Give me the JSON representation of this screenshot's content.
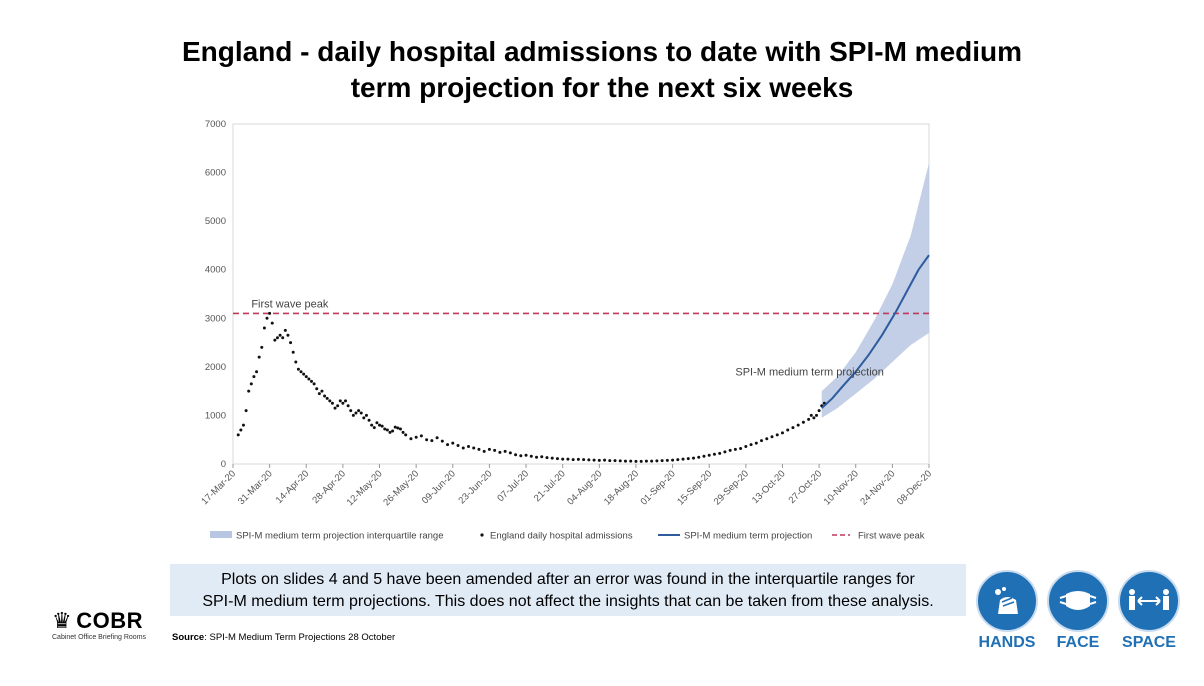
{
  "title_line1": "England - daily hospital admissions to date with SPI-M medium",
  "title_line2": "term projection for the next six weeks",
  "note_line1": "Plots on slides 4 and 5 have been amended after an error was found in the interquartile ranges for",
  "note_line2": "SPI-M medium term projections. This does not affect the insights that can be taken from these analysis.",
  "logo": {
    "word": "COBR",
    "subtitle": "Cabinet Office Briefing Rooms"
  },
  "source": {
    "label": "Source",
    "text": ": SPI-M Medium Term Projections 28 October"
  },
  "badges": [
    {
      "label": "HANDS",
      "icon": "hands-icon"
    },
    {
      "label": "FACE",
      "icon": "face-mask-icon"
    },
    {
      "label": "SPACE",
      "icon": "distance-icon"
    }
  ],
  "colors": {
    "admissions": "#111111",
    "projection": "#2e5c9e",
    "band": "#b8c6e3",
    "peak": "#c0395a",
    "badge": "#1f70b5",
    "note_bg": "#e1ebf6"
  },
  "chart_data": {
    "type": "scatter",
    "x_range": [
      "2020-03-17",
      "2020-12-08"
    ],
    "ylim": [
      0,
      7000
    ],
    "yticks": [
      0,
      1000,
      2000,
      3000,
      4000,
      5000,
      6000,
      7000
    ],
    "xtick_labels": [
      "17-Mar-20",
      "31-Mar-20",
      "14-Apr-20",
      "28-Apr-20",
      "12-May-20",
      "26-May-20",
      "09-Jun-20",
      "23-Jun-20",
      "07-Jul-20",
      "21-Jul-20",
      "04-Aug-20",
      "18-Aug-20",
      "01-Sep-20",
      "15-Sep-20",
      "29-Sep-20",
      "13-Oct-20",
      "27-Oct-20",
      "10-Nov-20",
      "24-Nov-20",
      "08-Dec-20"
    ],
    "grid": false,
    "legend_position": "bottom",
    "annotations": [
      {
        "text": "First wave peak",
        "x": "2020-03-24",
        "y": 3300
      },
      {
        "text": "SPI-M medium term projection",
        "x": "2020-09-25",
        "y": 1900
      }
    ],
    "peak_line": {
      "name": "First wave peak",
      "y": 3100
    },
    "series": [
      {
        "name": "England daily hospital admissions",
        "kind": "scatter",
        "points": [
          [
            "2020-03-19",
            600
          ],
          [
            "2020-03-20",
            700
          ],
          [
            "2020-03-21",
            800
          ],
          [
            "2020-03-22",
            1100
          ],
          [
            "2020-03-23",
            1500
          ],
          [
            "2020-03-24",
            1650
          ],
          [
            "2020-03-25",
            1800
          ],
          [
            "2020-03-26",
            1900
          ],
          [
            "2020-03-27",
            2200
          ],
          [
            "2020-03-28",
            2400
          ],
          [
            "2020-03-29",
            2800
          ],
          [
            "2020-03-30",
            3000
          ],
          [
            "2020-03-31",
            3100
          ],
          [
            "2020-04-01",
            2900
          ],
          [
            "2020-04-02",
            2550
          ],
          [
            "2020-04-03",
            2600
          ],
          [
            "2020-04-04",
            2650
          ],
          [
            "2020-04-05",
            2600
          ],
          [
            "2020-04-06",
            2750
          ],
          [
            "2020-04-07",
            2650
          ],
          [
            "2020-04-08",
            2500
          ],
          [
            "2020-04-09",
            2300
          ],
          [
            "2020-04-10",
            2100
          ],
          [
            "2020-04-11",
            1950
          ],
          [
            "2020-04-12",
            1900
          ],
          [
            "2020-04-13",
            1850
          ],
          [
            "2020-04-14",
            1800
          ],
          [
            "2020-04-15",
            1750
          ],
          [
            "2020-04-16",
            1700
          ],
          [
            "2020-04-17",
            1650
          ],
          [
            "2020-04-18",
            1550
          ],
          [
            "2020-04-19",
            1450
          ],
          [
            "2020-04-20",
            1500
          ],
          [
            "2020-04-21",
            1400
          ],
          [
            "2020-04-22",
            1350
          ],
          [
            "2020-04-23",
            1300
          ],
          [
            "2020-04-24",
            1250
          ],
          [
            "2020-04-25",
            1150
          ],
          [
            "2020-04-26",
            1200
          ],
          [
            "2020-04-27",
            1300
          ],
          [
            "2020-04-28",
            1250
          ],
          [
            "2020-04-29",
            1300
          ],
          [
            "2020-04-30",
            1200
          ],
          [
            "2020-05-01",
            1100
          ],
          [
            "2020-05-02",
            1000
          ],
          [
            "2020-05-03",
            1050
          ],
          [
            "2020-05-04",
            1100
          ],
          [
            "2020-05-05",
            1050
          ],
          [
            "2020-05-06",
            950
          ],
          [
            "2020-05-07",
            1000
          ],
          [
            "2020-05-08",
            900
          ],
          [
            "2020-05-09",
            800
          ],
          [
            "2020-05-10",
            750
          ],
          [
            "2020-05-11",
            850
          ],
          [
            "2020-05-12",
            800
          ],
          [
            "2020-05-13",
            780
          ],
          [
            "2020-05-14",
            720
          ],
          [
            "2020-05-15",
            700
          ],
          [
            "2020-05-16",
            650
          ],
          [
            "2020-05-17",
            680
          ],
          [
            "2020-05-18",
            760
          ],
          [
            "2020-05-19",
            740
          ],
          [
            "2020-05-20",
            720
          ],
          [
            "2020-05-21",
            650
          ],
          [
            "2020-05-22",
            600
          ],
          [
            "2020-05-24",
            520
          ],
          [
            "2020-05-26",
            550
          ],
          [
            "2020-05-28",
            580
          ],
          [
            "2020-05-30",
            500
          ],
          [
            "2020-06-01",
            480
          ],
          [
            "2020-06-03",
            540
          ],
          [
            "2020-06-05",
            470
          ],
          [
            "2020-06-07",
            400
          ],
          [
            "2020-06-09",
            430
          ],
          [
            "2020-06-11",
            380
          ],
          [
            "2020-06-13",
            330
          ],
          [
            "2020-06-15",
            360
          ],
          [
            "2020-06-17",
            330
          ],
          [
            "2020-06-19",
            300
          ],
          [
            "2020-06-21",
            260
          ],
          [
            "2020-06-23",
            300
          ],
          [
            "2020-06-25",
            280
          ],
          [
            "2020-06-27",
            240
          ],
          [
            "2020-06-29",
            260
          ],
          [
            "2020-07-01",
            230
          ],
          [
            "2020-07-03",
            190
          ],
          [
            "2020-07-05",
            170
          ],
          [
            "2020-07-07",
            180
          ],
          [
            "2020-07-09",
            160
          ],
          [
            "2020-07-11",
            140
          ],
          [
            "2020-07-13",
            150
          ],
          [
            "2020-07-15",
            130
          ],
          [
            "2020-07-17",
            120
          ],
          [
            "2020-07-19",
            110
          ],
          [
            "2020-07-21",
            100
          ],
          [
            "2020-07-23",
            100
          ],
          [
            "2020-07-25",
            90
          ],
          [
            "2020-07-27",
            95
          ],
          [
            "2020-07-29",
            90
          ],
          [
            "2020-07-31",
            85
          ],
          [
            "2020-08-02",
            80
          ],
          [
            "2020-08-04",
            75
          ],
          [
            "2020-08-06",
            80
          ],
          [
            "2020-08-08",
            70
          ],
          [
            "2020-08-10",
            70
          ],
          [
            "2020-08-12",
            65
          ],
          [
            "2020-08-14",
            60
          ],
          [
            "2020-08-16",
            60
          ],
          [
            "2020-08-18",
            55
          ],
          [
            "2020-08-20",
            55
          ],
          [
            "2020-08-22",
            60
          ],
          [
            "2020-08-24",
            60
          ],
          [
            "2020-08-26",
            65
          ],
          [
            "2020-08-28",
            70
          ],
          [
            "2020-08-30",
            75
          ],
          [
            "2020-09-01",
            80
          ],
          [
            "2020-09-03",
            90
          ],
          [
            "2020-09-05",
            100
          ],
          [
            "2020-09-07",
            110
          ],
          [
            "2020-09-09",
            120
          ],
          [
            "2020-09-11",
            140
          ],
          [
            "2020-09-13",
            160
          ],
          [
            "2020-09-15",
            180
          ],
          [
            "2020-09-17",
            200
          ],
          [
            "2020-09-19",
            220
          ],
          [
            "2020-09-21",
            250
          ],
          [
            "2020-09-23",
            280
          ],
          [
            "2020-09-25",
            300
          ],
          [
            "2020-09-27",
            320
          ],
          [
            "2020-09-29",
            360
          ],
          [
            "2020-10-01",
            400
          ],
          [
            "2020-10-03",
            430
          ],
          [
            "2020-10-05",
            480
          ],
          [
            "2020-10-07",
            520
          ],
          [
            "2020-10-09",
            560
          ],
          [
            "2020-10-11",
            600
          ],
          [
            "2020-10-13",
            640
          ],
          [
            "2020-10-15",
            700
          ],
          [
            "2020-10-17",
            750
          ],
          [
            "2020-10-19",
            800
          ],
          [
            "2020-10-21",
            860
          ],
          [
            "2020-10-23",
            920
          ],
          [
            "2020-10-24",
            1000
          ],
          [
            "2020-10-25",
            950
          ],
          [
            "2020-10-26",
            1000
          ],
          [
            "2020-10-27",
            1100
          ],
          [
            "2020-10-28",
            1200
          ],
          [
            "2020-10-29",
            1250
          ]
        ]
      },
      {
        "name": "SPI-M medium term projection",
        "kind": "line",
        "points": [
          [
            "2020-10-28",
            1150
          ],
          [
            "2020-11-01",
            1350
          ],
          [
            "2020-11-05",
            1600
          ],
          [
            "2020-11-10",
            1900
          ],
          [
            "2020-11-15",
            2250
          ],
          [
            "2020-11-20",
            2650
          ],
          [
            "2020-11-25",
            3100
          ],
          [
            "2020-11-30",
            3600
          ],
          [
            "2020-12-04",
            4000
          ],
          [
            "2020-12-08",
            4300
          ]
        ]
      },
      {
        "name": "SPI-M medium term projection interquartile range",
        "kind": "band",
        "points": [
          [
            "2020-10-28",
            950,
            1500
          ],
          [
            "2020-11-03",
            1150,
            1800
          ],
          [
            "2020-11-10",
            1450,
            2300
          ],
          [
            "2020-11-17",
            1750,
            2950
          ],
          [
            "2020-11-24",
            2100,
            3700
          ],
          [
            "2020-12-01",
            2450,
            4700
          ],
          [
            "2020-12-08",
            2700,
            6200
          ]
        ]
      }
    ]
  }
}
